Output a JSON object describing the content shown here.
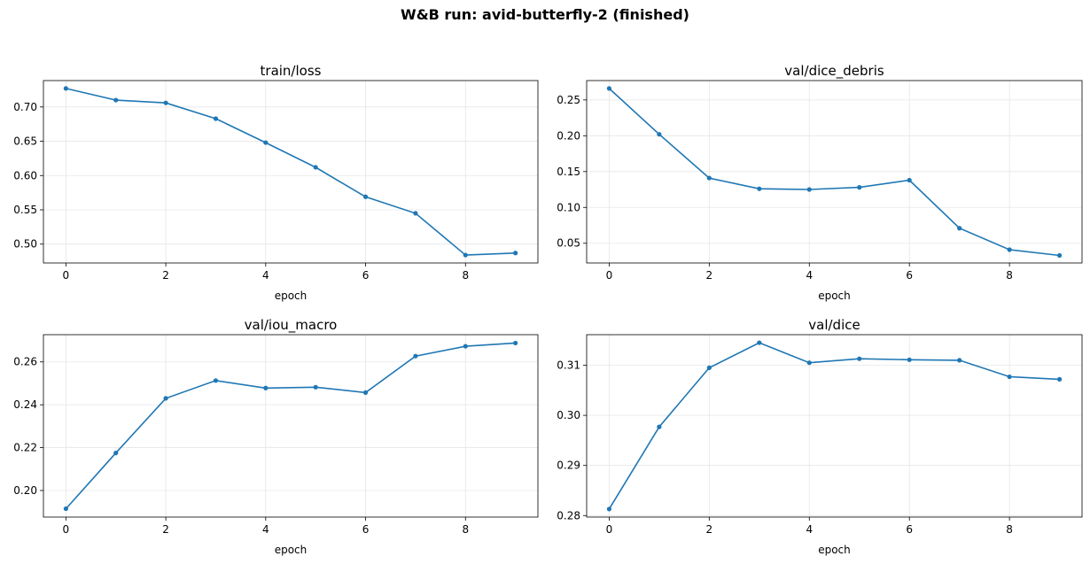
{
  "figure": {
    "title": "W&B run: avid-butterfly-2  (finished)"
  },
  "colors": {
    "series": "#1f77b4",
    "grid": "#e6e6e6",
    "axis": "#000000"
  },
  "chart_data": [
    {
      "type": "line",
      "title": "train/loss",
      "xlabel": "epoch",
      "ylabel": "",
      "x": [
        0,
        1,
        2,
        3,
        4,
        5,
        6,
        7,
        8,
        9
      ],
      "values": [
        0.727,
        0.71,
        0.706,
        0.683,
        0.648,
        0.612,
        0.569,
        0.545,
        0.484,
        0.487
      ],
      "xticks": [
        0,
        2,
        4,
        6,
        8
      ],
      "yticks": [
        0.5,
        0.55,
        0.6,
        0.65,
        0.7
      ],
      "ytick_labels": [
        "0.50",
        "0.55",
        "0.60",
        "0.65",
        "0.70"
      ],
      "xlim": [
        -0.45,
        9.45
      ],
      "ylim": [
        0.4725,
        0.7385
      ],
      "grid": true
    },
    {
      "type": "line",
      "title": "val/dice_debris",
      "xlabel": "epoch",
      "ylabel": "",
      "x": [
        0,
        1,
        2,
        3,
        4,
        5,
        6,
        7,
        8,
        9
      ],
      "values": [
        0.266,
        0.202,
        0.141,
        0.126,
        0.125,
        0.128,
        0.138,
        0.071,
        0.041,
        0.033
      ],
      "xticks": [
        0,
        2,
        4,
        6,
        8
      ],
      "yticks": [
        0.05,
        0.1,
        0.15,
        0.2,
        0.25
      ],
      "ytick_labels": [
        "0.05",
        "0.10",
        "0.15",
        "0.20",
        "0.25"
      ],
      "xlim": [
        -0.45,
        9.45
      ],
      "ylim": [
        0.0225,
        0.277
      ],
      "grid": true
    },
    {
      "type": "line",
      "title": "val/iou_macro",
      "xlabel": "epoch",
      "ylabel": "",
      "x": [
        0,
        1,
        2,
        3,
        4,
        5,
        6,
        7,
        8,
        9
      ],
      "values": [
        0.1915,
        0.2175,
        0.243,
        0.2513,
        0.2478,
        0.2482,
        0.2457,
        0.2627,
        0.2673,
        0.2688
      ],
      "xticks": [
        0,
        2,
        4,
        6,
        8
      ],
      "yticks": [
        0.2,
        0.22,
        0.24,
        0.26
      ],
      "ytick_labels": [
        "0.20",
        "0.22",
        "0.24",
        "0.26"
      ],
      "xlim": [
        -0.45,
        9.45
      ],
      "ylim": [
        0.1876,
        0.2727
      ],
      "grid": true
    },
    {
      "type": "line",
      "title": "val/dice",
      "xlabel": "epoch",
      "ylabel": "",
      "x": [
        0,
        1,
        2,
        3,
        4,
        5,
        6,
        7,
        8,
        9
      ],
      "values": [
        0.2813,
        0.2977,
        0.3095,
        0.3145,
        0.3105,
        0.3113,
        0.3111,
        0.311,
        0.3077,
        0.3072
      ],
      "xticks": [
        0,
        2,
        4,
        6,
        8
      ],
      "yticks": [
        0.28,
        0.29,
        0.3,
        0.31
      ],
      "ytick_labels": [
        "0.28",
        "0.29",
        "0.30",
        "0.31"
      ],
      "xlim": [
        -0.45,
        9.45
      ],
      "ylim": [
        0.2797,
        0.3161
      ],
      "grid": true
    }
  ]
}
